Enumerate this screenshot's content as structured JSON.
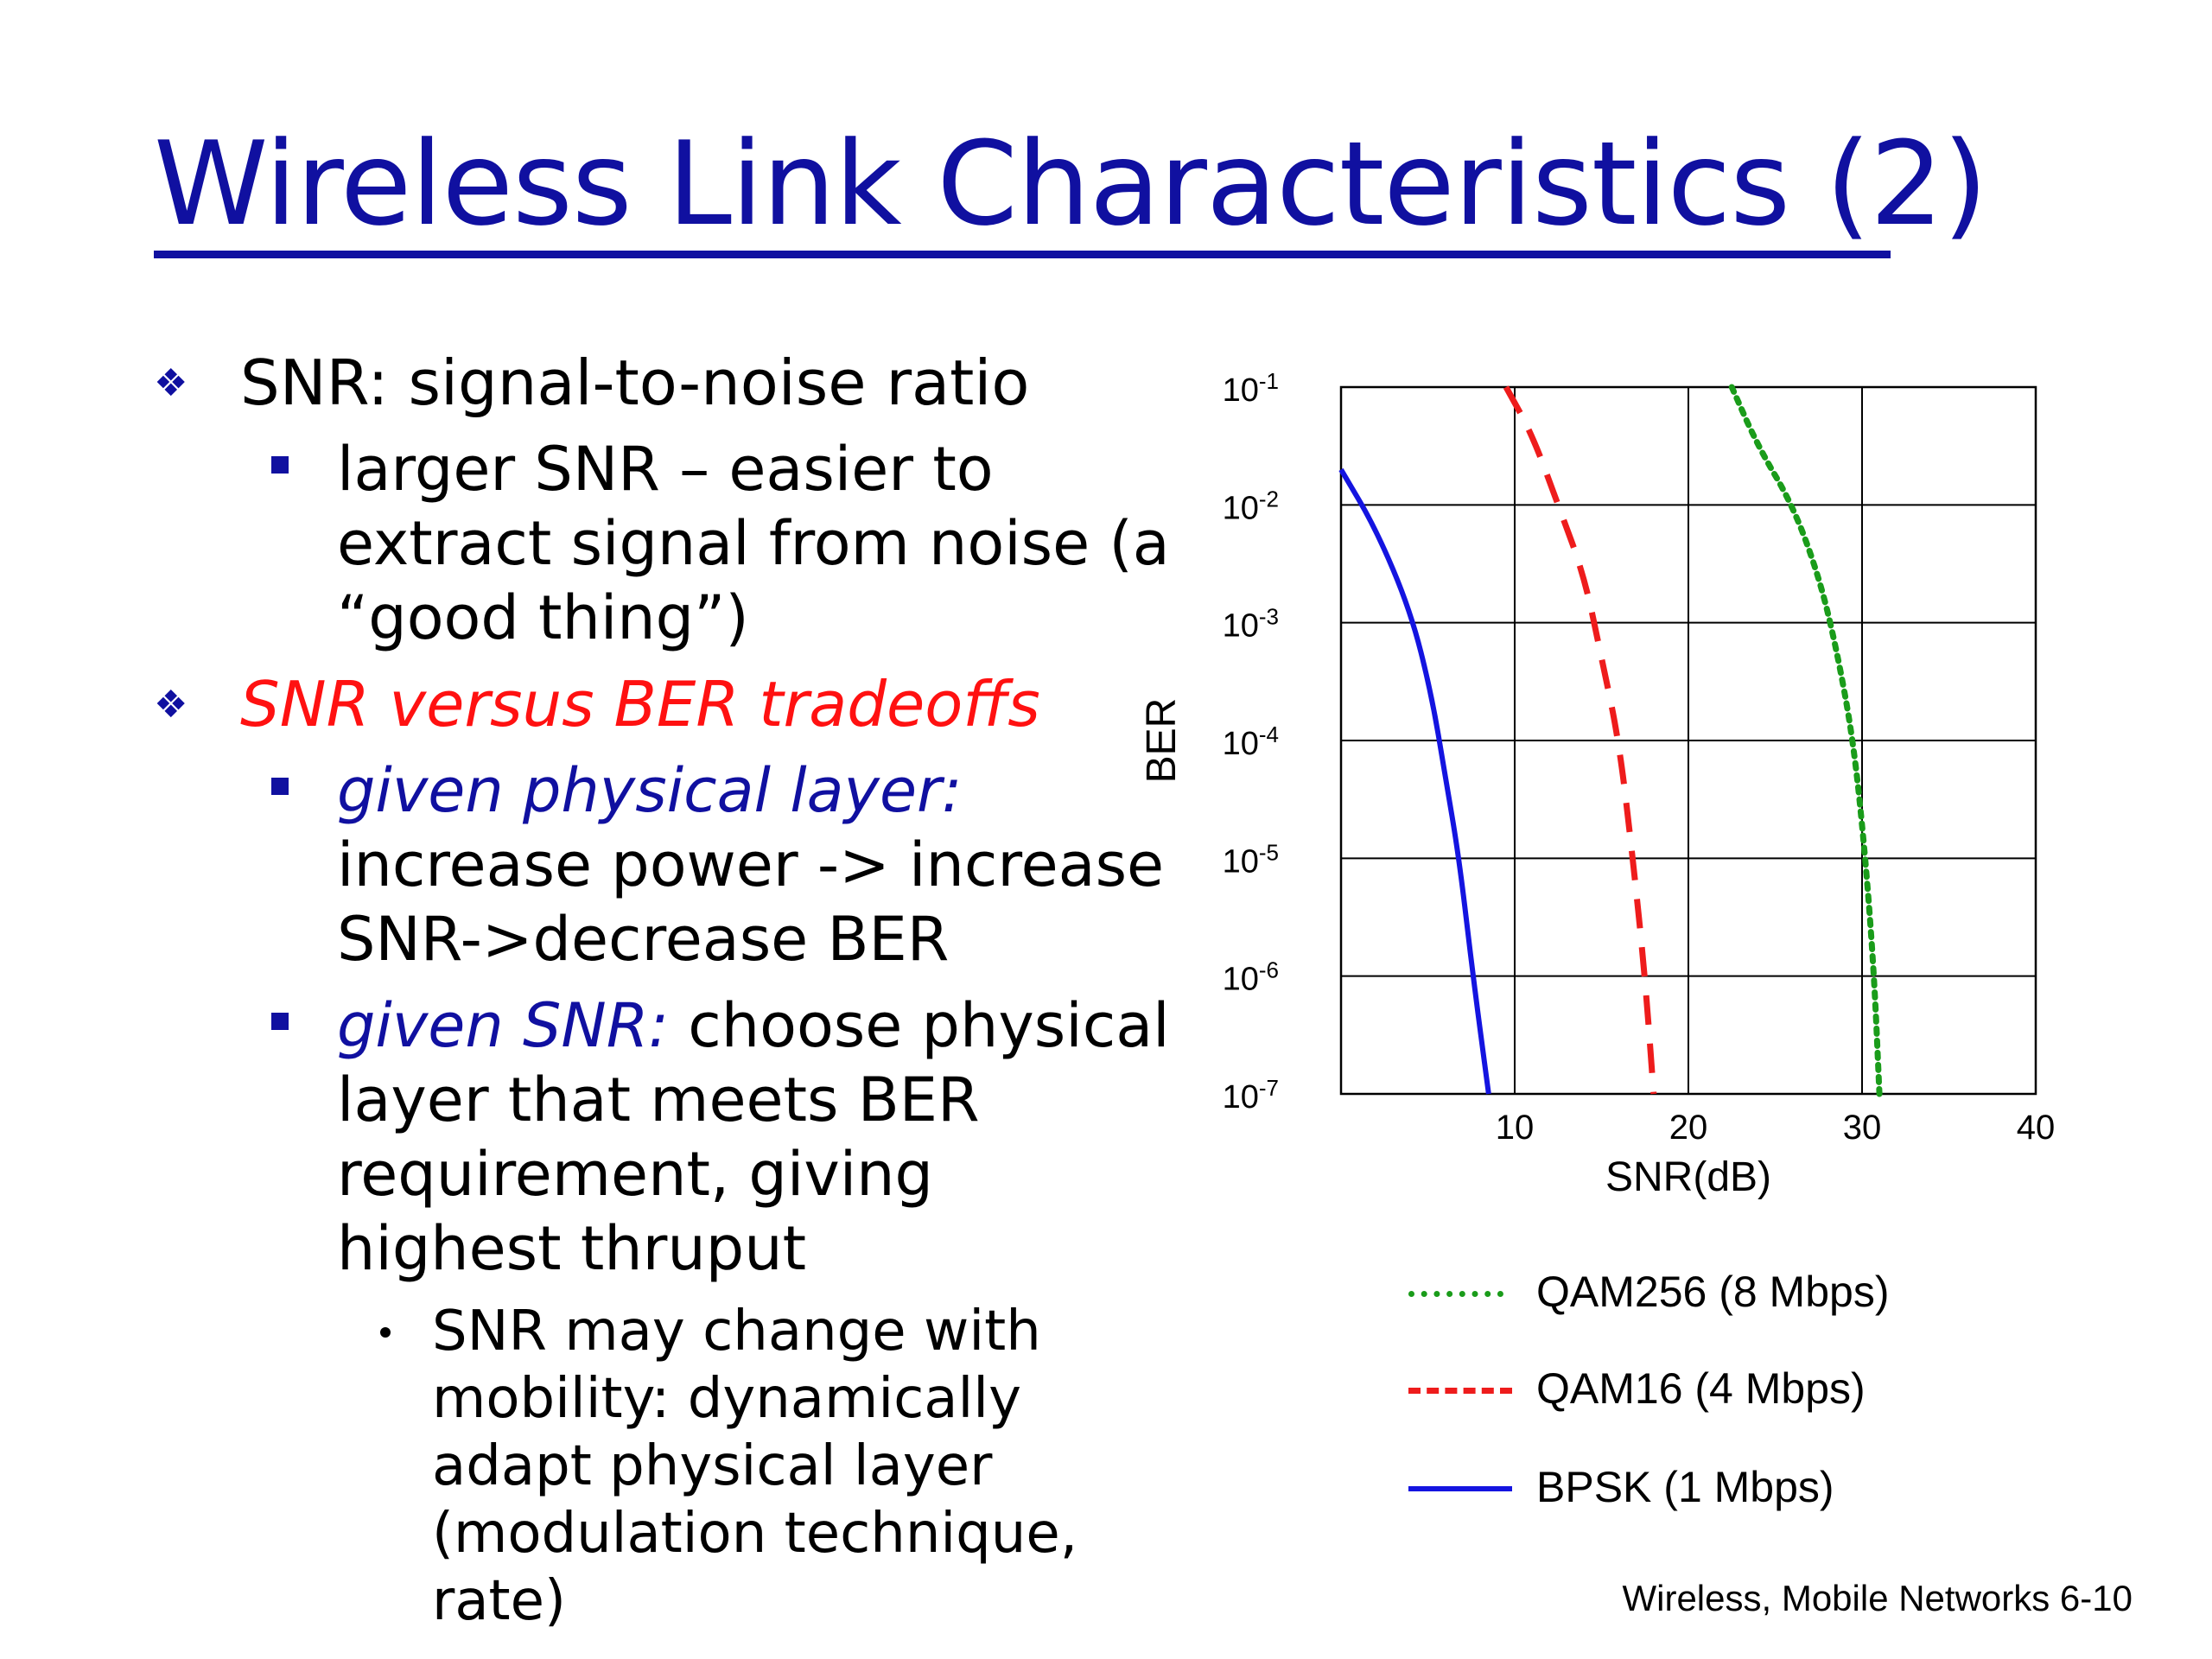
{
  "slide": {
    "title": "Wireless Link Characteristics (2)",
    "footer": "Wireless, Mobile Networks  6-10"
  },
  "bullets": {
    "b1": "SNR: signal-to-noise ratio",
    "b1_sub": "larger SNR – easier to extract signal from noise (a “good thing”)",
    "b2": "SNR versus BER tradeoffs",
    "b2_sub1_label": "given physical layer:",
    "b2_sub1_text": "increase power -> increase SNR->decrease BER",
    "b2_sub2_label": "given SNR:",
    "b2_sub2_text": " choose physical layer that meets BER requirement, giving highest thruput",
    "b2_sub2_sub": "SNR may change with mobility: dynamically adapt physical layer (modulation technique, rate)"
  },
  "chart_data": {
    "type": "line",
    "xlabel": "SNR(dB)",
    "ylabel": "BER",
    "xlim": [
      0,
      40
    ],
    "ylim_log10": [
      -7,
      -1
    ],
    "y_scale": "log",
    "x_ticks": [
      10,
      20,
      30,
      40
    ],
    "x_tick_labels": [
      "10",
      "20",
      "30",
      "40"
    ],
    "y_ticks_log10": [
      -1,
      -2,
      -3,
      -4,
      -5,
      -6,
      -7
    ],
    "y_tick_labels": [
      "10-1",
      "10-2",
      "10-3",
      "10-4",
      "10-5",
      "10-6",
      "10-7"
    ],
    "grid": true,
    "series": [
      {
        "name": "QAM256 (8 Mbps)",
        "color": "#1a9c1a",
        "dash": "dotted",
        "points": [
          [
            22.5,
            -1
          ],
          [
            24.0,
            -1.5
          ],
          [
            26.0,
            -2.0
          ],
          [
            27.5,
            -2.6
          ],
          [
            28.5,
            -3.2
          ],
          [
            29.5,
            -4.0
          ],
          [
            30.2,
            -5.0
          ],
          [
            30.7,
            -6.0
          ],
          [
            31.0,
            -7.0
          ]
        ]
      },
      {
        "name": "QAM16 (4 Mbps)",
        "color": "#ee1c1c",
        "dash": "dashed",
        "points": [
          [
            9.5,
            -1
          ],
          [
            11.0,
            -1.4
          ],
          [
            12.5,
            -2.0
          ],
          [
            14.0,
            -2.6
          ],
          [
            15.0,
            -3.3
          ],
          [
            16.0,
            -4.0
          ],
          [
            16.8,
            -5.0
          ],
          [
            17.5,
            -6.0
          ],
          [
            18.0,
            -7.0
          ]
        ]
      },
      {
        "name": "BPSK (1 Mbps)",
        "color": "#1414e0",
        "dash": "solid",
        "points": [
          [
            0,
            -1.7
          ],
          [
            2.0,
            -2.2
          ],
          [
            4.0,
            -2.9
          ],
          [
            5.2,
            -3.6
          ],
          [
            6.0,
            -4.3
          ],
          [
            6.8,
            -5.0
          ],
          [
            7.6,
            -6.0
          ],
          [
            8.5,
            -7.0
          ]
        ]
      }
    ],
    "legend_placement": "bottom"
  }
}
